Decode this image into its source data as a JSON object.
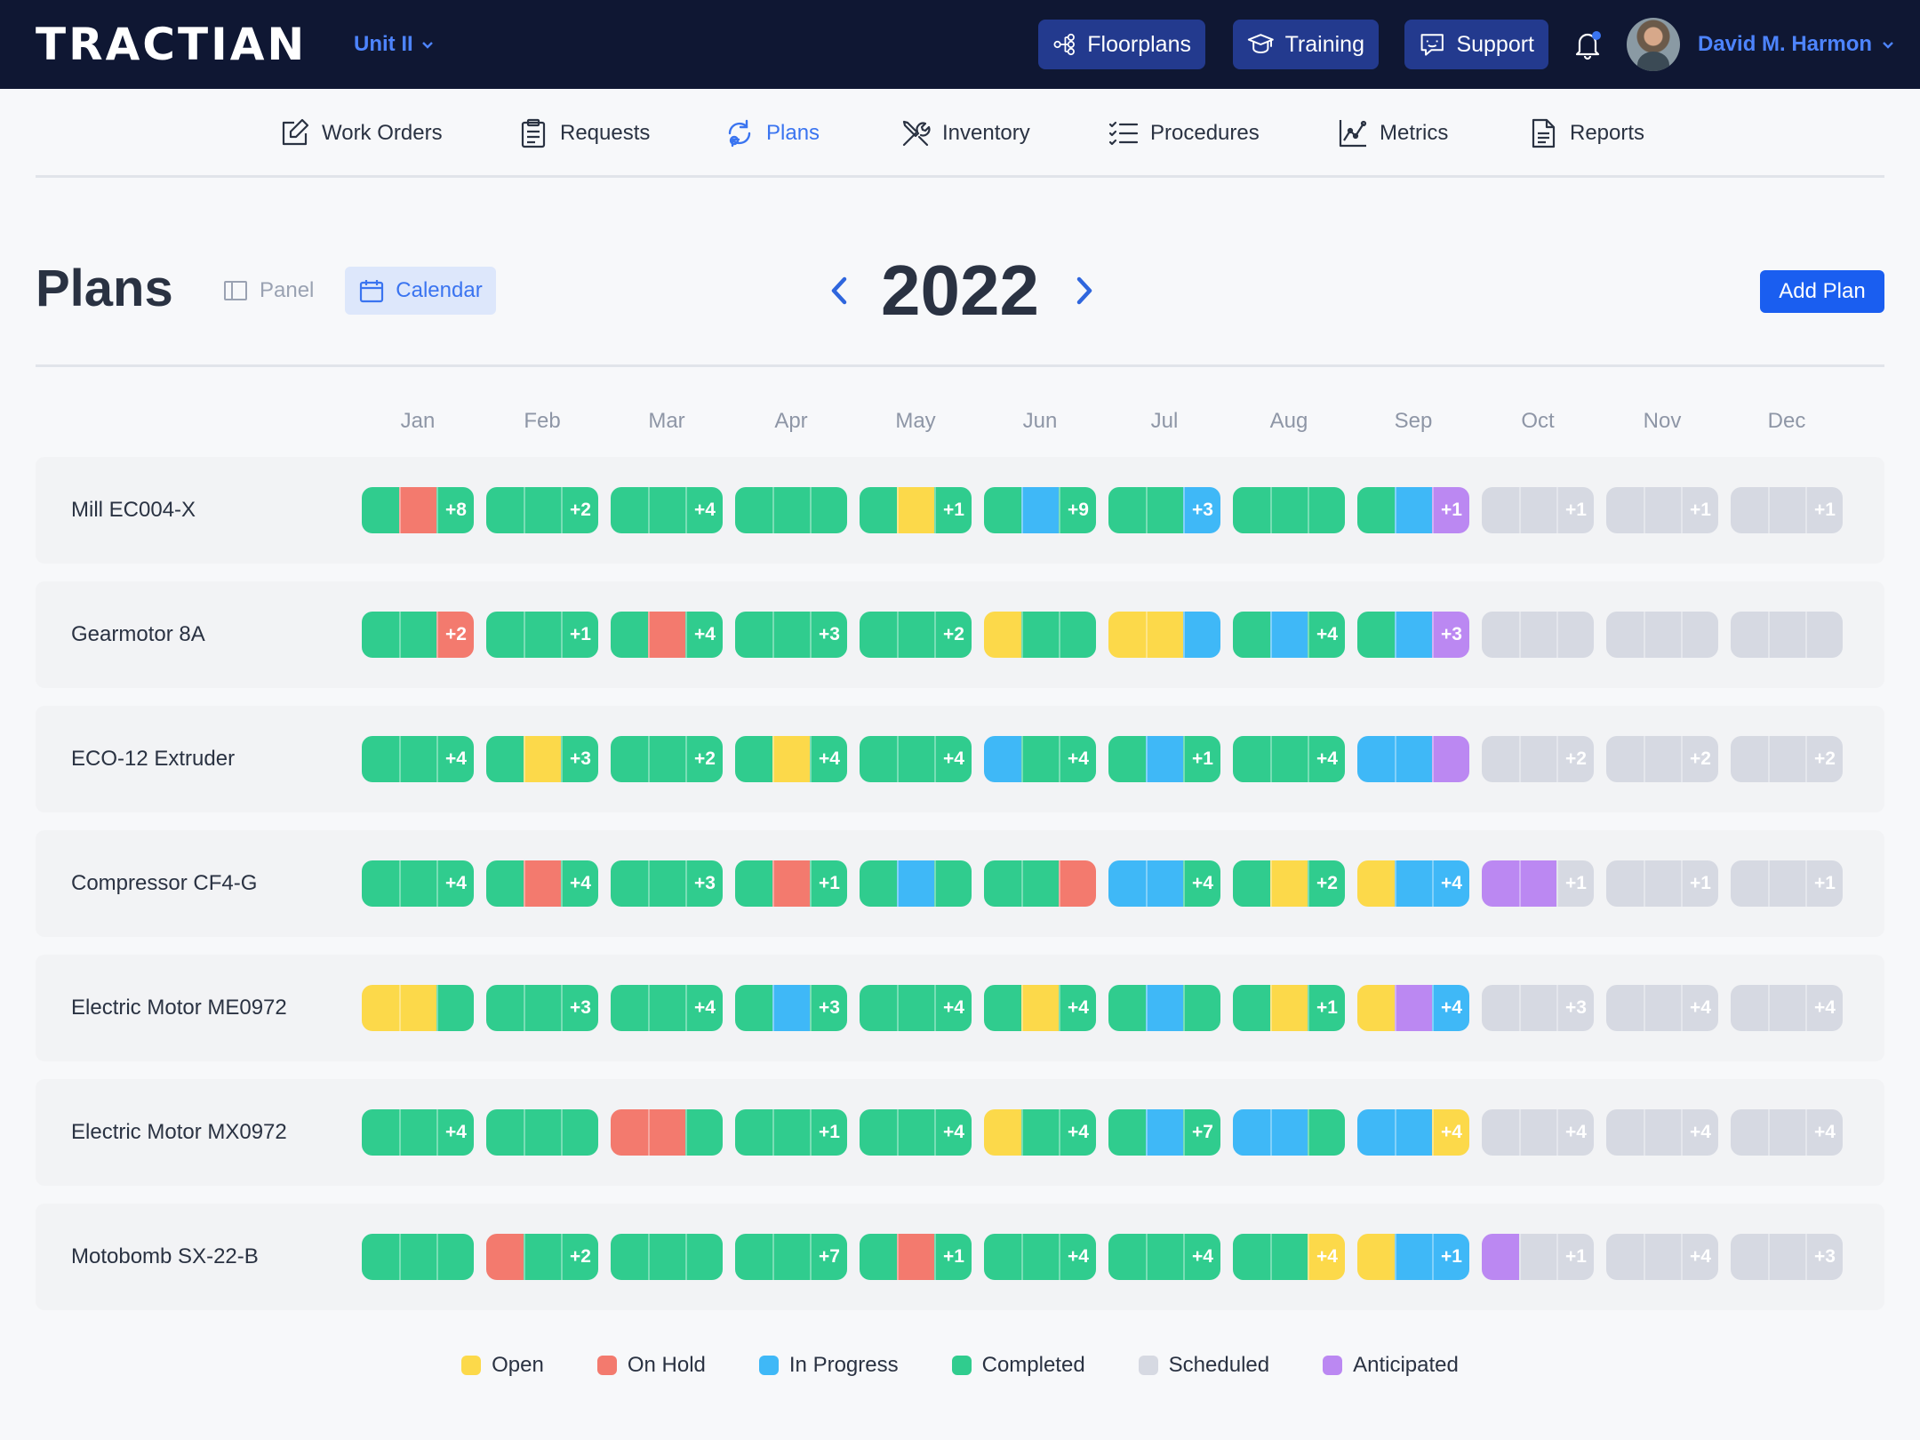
{
  "app": {
    "logo": "TRACTIAN",
    "unit": "Unit II"
  },
  "top_buttons": {
    "floorplans": "Floorplans",
    "training": "Training",
    "support": "Support"
  },
  "user": {
    "name": "David M. Harmon"
  },
  "nav": [
    "Work Orders",
    "Requests",
    "Plans",
    "Inventory",
    "Procedures",
    "Metrics",
    "Reports"
  ],
  "page": {
    "title": "Plans",
    "view_panel": "Panel",
    "view_calendar": "Calendar",
    "year": "2022",
    "add_plan": "Add Plan"
  },
  "colors": {
    "open": "#fcd94a",
    "hold": "#f37a6e",
    "prog": "#3fb8f7",
    "comp": "#30cc8e",
    "sched": "#d6d9e2",
    "anti": "#bb88f2"
  },
  "months": [
    "Jan",
    "Feb",
    "Mar",
    "Apr",
    "May",
    "Jun",
    "Jul",
    "Aug",
    "Sep",
    "Oct",
    "Nov",
    "Dec"
  ],
  "assets": [
    {
      "name": "Mill EC004-X",
      "cells": [
        [
          "comp",
          "hold",
          "comp:+8"
        ],
        [
          "comp",
          "comp",
          "comp:+2"
        ],
        [
          "comp",
          "comp",
          "comp:+4"
        ],
        [
          "comp",
          "comp",
          "comp"
        ],
        [
          "comp",
          "open",
          "comp:+1"
        ],
        [
          "comp",
          "prog",
          "comp:+9"
        ],
        [
          "comp",
          "comp",
          "prog:+3"
        ],
        [
          "comp",
          "comp",
          "comp"
        ],
        [
          "comp",
          "prog",
          "anti:+1"
        ],
        [
          "sched",
          "sched",
          "sched:+1"
        ],
        [
          "sched",
          "sched",
          "sched:+1"
        ],
        [
          "sched",
          "sched",
          "sched:+1"
        ]
      ]
    },
    {
      "name": "Gearmotor 8A",
      "cells": [
        [
          "comp",
          "comp",
          "hold:+2"
        ],
        [
          "comp",
          "comp",
          "comp:+1"
        ],
        [
          "comp",
          "hold",
          "comp:+4"
        ],
        [
          "comp",
          "comp",
          "comp:+3"
        ],
        [
          "comp",
          "comp",
          "comp:+2"
        ],
        [
          "open",
          "comp",
          "comp"
        ],
        [
          "open",
          "open",
          "prog"
        ],
        [
          "comp",
          "prog",
          "comp:+4"
        ],
        [
          "comp",
          "prog",
          "anti:+3"
        ],
        [
          "sched",
          "sched",
          "sched"
        ],
        [
          "sched",
          "sched",
          "sched"
        ],
        [
          "sched",
          "sched",
          "sched"
        ]
      ]
    },
    {
      "name": "ECO-12 Extruder",
      "cells": [
        [
          "comp",
          "comp",
          "comp:+4"
        ],
        [
          "comp",
          "open",
          "comp:+3"
        ],
        [
          "comp",
          "comp",
          "comp:+2"
        ],
        [
          "comp",
          "open",
          "comp:+4"
        ],
        [
          "comp",
          "comp",
          "comp:+4"
        ],
        [
          "prog",
          "comp",
          "comp:+4"
        ],
        [
          "comp",
          "prog",
          "comp:+1"
        ],
        [
          "comp",
          "comp",
          "comp:+4"
        ],
        [
          "prog",
          "prog",
          "anti"
        ],
        [
          "sched",
          "sched",
          "sched:+2"
        ],
        [
          "sched",
          "sched",
          "sched:+2"
        ],
        [
          "sched",
          "sched",
          "sched:+2"
        ]
      ]
    },
    {
      "name": "Compressor CF4-G",
      "cells": [
        [
          "comp",
          "comp",
          "comp:+4"
        ],
        [
          "comp",
          "hold",
          "comp:+4"
        ],
        [
          "comp",
          "comp",
          "comp:+3"
        ],
        [
          "comp",
          "hold",
          "comp:+1"
        ],
        [
          "comp",
          "prog",
          "comp"
        ],
        [
          "comp",
          "comp",
          "hold"
        ],
        [
          "prog",
          "prog",
          "comp:+4"
        ],
        [
          "comp",
          "open",
          "comp:+2"
        ],
        [
          "open",
          "prog",
          "prog:+4"
        ],
        [
          "anti",
          "anti",
          "sched:+1"
        ],
        [
          "sched",
          "sched",
          "sched:+1"
        ],
        [
          "sched",
          "sched",
          "sched:+1"
        ]
      ]
    },
    {
      "name": "Electric Motor ME0972",
      "cells": [
        [
          "open",
          "open",
          "comp"
        ],
        [
          "comp",
          "comp",
          "comp:+3"
        ],
        [
          "comp",
          "comp",
          "comp:+4"
        ],
        [
          "comp",
          "prog",
          "comp:+3"
        ],
        [
          "comp",
          "comp",
          "comp:+4"
        ],
        [
          "comp",
          "open",
          "comp:+4"
        ],
        [
          "comp",
          "prog",
          "comp"
        ],
        [
          "comp",
          "open",
          "comp:+1"
        ],
        [
          "open",
          "anti",
          "prog:+4"
        ],
        [
          "sched",
          "sched",
          "sched:+3"
        ],
        [
          "sched",
          "sched",
          "sched:+4"
        ],
        [
          "sched",
          "sched",
          "sched:+4"
        ]
      ]
    },
    {
      "name": "Electric Motor MX0972",
      "cells": [
        [
          "comp",
          "comp",
          "comp:+4"
        ],
        [
          "comp",
          "comp",
          "comp"
        ],
        [
          "hold",
          "hold",
          "comp"
        ],
        [
          "comp",
          "comp",
          "comp:+1"
        ],
        [
          "comp",
          "comp",
          "comp:+4"
        ],
        [
          "open",
          "comp",
          "comp:+4"
        ],
        [
          "comp",
          "prog",
          "comp:+7"
        ],
        [
          "prog",
          "prog",
          "comp"
        ],
        [
          "prog",
          "prog",
          "open:+4"
        ],
        [
          "sched",
          "sched",
          "sched:+4"
        ],
        [
          "sched",
          "sched",
          "sched:+4"
        ],
        [
          "sched",
          "sched",
          "sched:+4"
        ]
      ]
    },
    {
      "name": "Motobomb SX-22-B",
      "cells": [
        [
          "comp",
          "comp",
          "comp"
        ],
        [
          "hold",
          "comp",
          "comp:+2"
        ],
        [
          "comp",
          "comp",
          "comp"
        ],
        [
          "comp",
          "comp",
          "comp:+7"
        ],
        [
          "comp",
          "hold",
          "comp:+1"
        ],
        [
          "comp",
          "comp",
          "comp:+4"
        ],
        [
          "comp",
          "comp",
          "comp:+4"
        ],
        [
          "comp",
          "comp",
          "open:+4"
        ],
        [
          "open",
          "prog",
          "prog:+1"
        ],
        [
          "anti",
          "sched",
          "sched:+1"
        ],
        [
          "sched",
          "sched",
          "sched:+4"
        ],
        [
          "sched",
          "sched",
          "sched:+3"
        ]
      ]
    }
  ],
  "legend": [
    {
      "key": "open",
      "label": "Open"
    },
    {
      "key": "hold",
      "label": "On Hold"
    },
    {
      "key": "prog",
      "label": "In Progress"
    },
    {
      "key": "comp",
      "label": "Completed"
    },
    {
      "key": "sched",
      "label": "Scheduled"
    },
    {
      "key": "anti",
      "label": "Anticipated"
    }
  ]
}
